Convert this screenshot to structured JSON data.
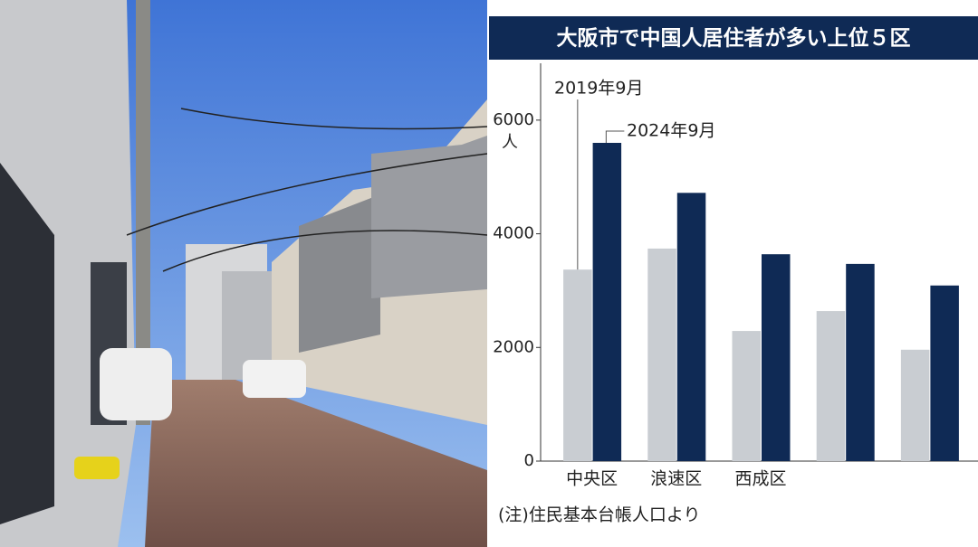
{
  "chart_data": {
    "type": "bar",
    "title": "大阪市で中国人居住者が多い上位５区",
    "categories": [
      "中央区",
      "浪速区",
      "西成区",
      null,
      null
    ],
    "series": [
      {
        "name": "2019年9月",
        "color": "#c9cdd2",
        "values": [
          3370,
          3740,
          2290,
          2640,
          1960
        ]
      },
      {
        "name": "2024年9月",
        "color": "#0f2a55",
        "values": [
          5600,
          4720,
          3640,
          3470,
          3090
        ]
      }
    ],
    "ylim": [
      0,
      7000
    ],
    "yticks": [
      0,
      2000,
      4000,
      6000
    ],
    "y_unit": "人",
    "note": "(注)住民基本台帳人口より"
  }
}
